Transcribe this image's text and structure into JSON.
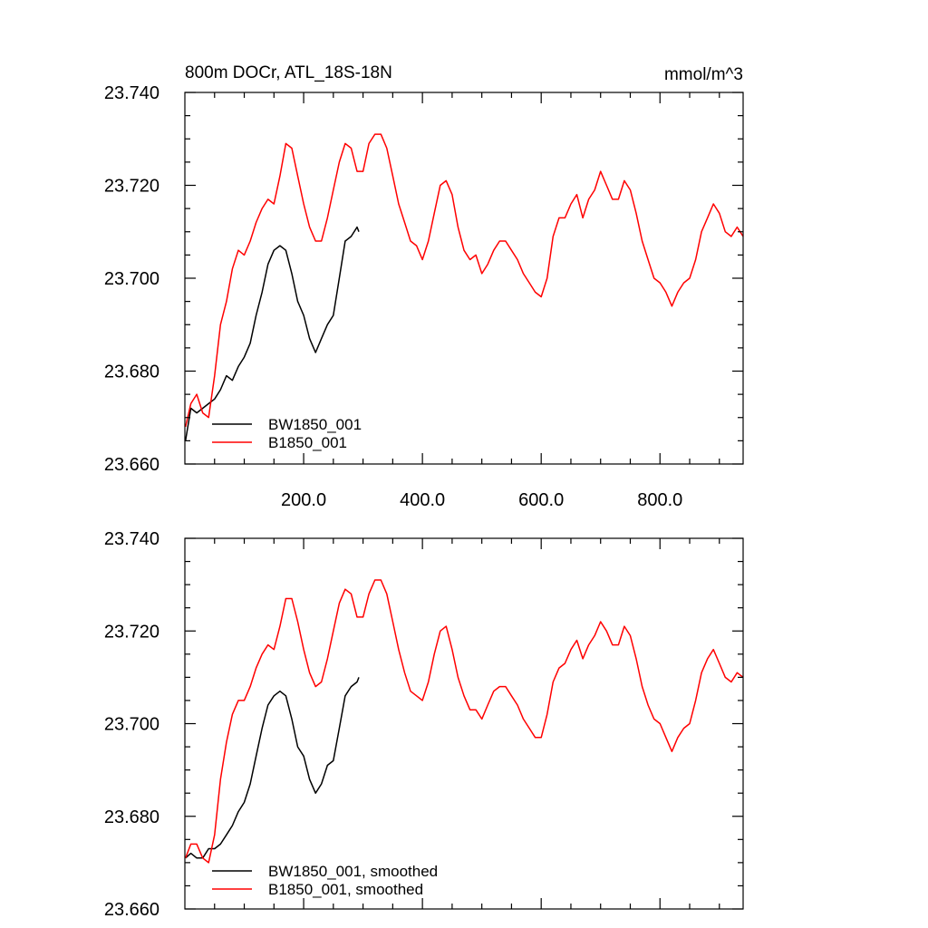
{
  "chart_data": [
    {
      "type": "line",
      "title_left": "800m DOCr, ATL_18S-18N",
      "title_right": "mmol/m^3",
      "ylim": [
        23.66,
        23.74
      ],
      "xlim": [
        0,
        940
      ],
      "y_ticks": [
        "23.660",
        "23.680",
        "23.700",
        "23.720",
        "23.740"
      ],
      "x_ticks": [
        "200.0",
        "400.0",
        "600.0",
        "800.0"
      ],
      "legend_position": "bottom-left",
      "series": [
        {
          "name": "BW1850_001",
          "color": "#000000",
          "x": [
            1,
            10,
            20,
            30,
            40,
            50,
            60,
            70,
            80,
            90,
            100,
            110,
            120,
            130,
            140,
            150,
            160,
            170,
            180,
            190,
            200,
            210,
            220,
            230,
            240,
            250,
            260,
            270,
            280,
            290,
            293
          ],
          "y": [
            23.665,
            23.672,
            23.671,
            23.672,
            23.673,
            23.674,
            23.676,
            23.679,
            23.678,
            23.681,
            23.683,
            23.686,
            23.692,
            23.697,
            23.703,
            23.706,
            23.707,
            23.706,
            23.701,
            23.695,
            23.692,
            23.687,
            23.684,
            23.687,
            23.69,
            23.692,
            23.7,
            23.708,
            23.709,
            23.711,
            23.71
          ]
        },
        {
          "name": "B1850_001",
          "color": "#ff0000",
          "x": [
            1,
            10,
            20,
            30,
            40,
            50,
            60,
            70,
            80,
            90,
            100,
            110,
            120,
            130,
            140,
            150,
            160,
            170,
            180,
            190,
            200,
            210,
            220,
            230,
            240,
            250,
            260,
            270,
            280,
            290,
            300,
            310,
            320,
            330,
            340,
            350,
            360,
            370,
            380,
            390,
            400,
            410,
            420,
            430,
            440,
            450,
            460,
            470,
            480,
            490,
            500,
            510,
            520,
            530,
            540,
            550,
            560,
            570,
            580,
            590,
            600,
            610,
            620,
            630,
            640,
            650,
            660,
            670,
            680,
            690,
            700,
            710,
            720,
            730,
            740,
            750,
            760,
            770,
            780,
            790,
            800,
            810,
            820,
            830,
            840,
            850,
            860,
            870,
            880,
            890,
            900,
            910,
            920,
            930,
            940
          ],
          "y": [
            23.668,
            23.673,
            23.675,
            23.671,
            23.67,
            23.679,
            23.69,
            23.695,
            23.702,
            23.706,
            23.705,
            23.708,
            23.712,
            23.715,
            23.717,
            23.716,
            23.722,
            23.729,
            23.728,
            23.722,
            23.716,
            23.711,
            23.708,
            23.708,
            23.713,
            23.719,
            23.725,
            23.729,
            23.728,
            23.723,
            23.723,
            23.729,
            23.731,
            23.731,
            23.728,
            23.722,
            23.716,
            23.712,
            23.708,
            23.707,
            23.704,
            23.708,
            23.714,
            23.72,
            23.721,
            23.718,
            23.711,
            23.706,
            23.704,
            23.705,
            23.701,
            23.703,
            23.706,
            23.708,
            23.708,
            23.706,
            23.704,
            23.701,
            23.699,
            23.697,
            23.696,
            23.7,
            23.709,
            23.713,
            23.713,
            23.716,
            23.718,
            23.713,
            23.717,
            23.719,
            23.723,
            23.72,
            23.717,
            23.717,
            23.721,
            23.719,
            23.714,
            23.708,
            23.704,
            23.7,
            23.699,
            23.697,
            23.694,
            23.697,
            23.699,
            23.7,
            23.704,
            23.71,
            23.713,
            23.716,
            23.714,
            23.71,
            23.709,
            23.711,
            23.709
          ]
        }
      ]
    },
    {
      "type": "line",
      "ylim": [
        23.66,
        23.74
      ],
      "xlim": [
        0,
        940
      ],
      "y_ticks": [
        "23.660",
        "23.680",
        "23.700",
        "23.720",
        "23.740"
      ],
      "legend_position": "bottom-left",
      "series": [
        {
          "name": "BW1850_001, smoothed",
          "color": "#000000",
          "x": [
            1,
            10,
            20,
            30,
            40,
            50,
            60,
            70,
            80,
            90,
            100,
            110,
            120,
            130,
            140,
            150,
            160,
            170,
            180,
            190,
            200,
            210,
            220,
            230,
            240,
            250,
            260,
            270,
            280,
            290,
            293
          ],
          "y": [
            23.671,
            23.672,
            23.671,
            23.671,
            23.673,
            23.673,
            23.674,
            23.676,
            23.678,
            23.681,
            23.683,
            23.687,
            23.693,
            23.699,
            23.704,
            23.706,
            23.707,
            23.706,
            23.701,
            23.695,
            23.693,
            23.688,
            23.685,
            23.687,
            23.691,
            23.692,
            23.699,
            23.706,
            23.708,
            23.709,
            23.71
          ]
        },
        {
          "name": "B1850_001, smoothed",
          "color": "#ff0000",
          "x": [
            1,
            10,
            20,
            30,
            40,
            50,
            60,
            70,
            80,
            90,
            100,
            110,
            120,
            130,
            140,
            150,
            160,
            170,
            180,
            190,
            200,
            210,
            220,
            230,
            240,
            250,
            260,
            270,
            280,
            290,
            300,
            310,
            320,
            330,
            340,
            350,
            360,
            370,
            380,
            390,
            400,
            410,
            420,
            430,
            440,
            450,
            460,
            470,
            480,
            490,
            500,
            510,
            520,
            530,
            540,
            550,
            560,
            570,
            580,
            590,
            600,
            610,
            620,
            630,
            640,
            650,
            660,
            670,
            680,
            690,
            700,
            710,
            720,
            730,
            740,
            750,
            760,
            770,
            780,
            790,
            800,
            810,
            820,
            830,
            840,
            850,
            860,
            870,
            880,
            890,
            900,
            910,
            920,
            930,
            940
          ],
          "y": [
            23.671,
            23.674,
            23.674,
            23.671,
            23.67,
            23.676,
            23.688,
            23.696,
            23.702,
            23.705,
            23.705,
            23.708,
            23.712,
            23.715,
            23.717,
            23.716,
            23.721,
            23.727,
            23.727,
            23.722,
            23.716,
            23.711,
            23.708,
            23.709,
            23.714,
            23.72,
            23.726,
            23.729,
            23.728,
            23.723,
            23.723,
            23.728,
            23.731,
            23.731,
            23.728,
            23.722,
            23.716,
            23.711,
            23.707,
            23.706,
            23.705,
            23.709,
            23.715,
            23.72,
            23.721,
            23.716,
            23.71,
            23.706,
            23.703,
            23.703,
            23.701,
            23.704,
            23.707,
            23.708,
            23.708,
            23.706,
            23.704,
            23.701,
            23.699,
            23.697,
            23.697,
            23.702,
            23.709,
            23.712,
            23.713,
            23.716,
            23.718,
            23.714,
            23.717,
            23.719,
            23.722,
            23.72,
            23.717,
            23.717,
            23.721,
            23.719,
            23.714,
            23.708,
            23.704,
            23.701,
            23.7,
            23.697,
            23.694,
            23.697,
            23.699,
            23.7,
            23.705,
            23.711,
            23.714,
            23.716,
            23.713,
            23.71,
            23.709,
            23.711,
            23.71
          ]
        }
      ]
    }
  ]
}
